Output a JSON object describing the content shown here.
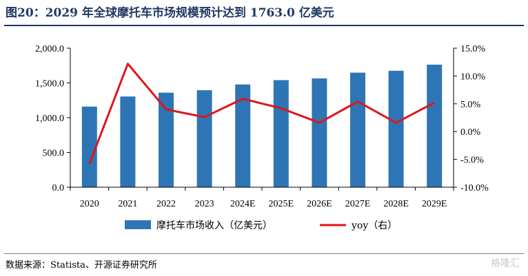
{
  "title": "图20：2029 年全球摩托车市场规模预计达到 1763.0 亿美元",
  "source": "数据来源：Statista、开源证券研究所",
  "watermark": "格隆汇",
  "colors": {
    "bar": "#2e75b6",
    "line": "#e0151a",
    "title": "#1f3864"
  },
  "chart_data": {
    "type": "bar",
    "categories": [
      "2020",
      "2021",
      "2022",
      "2023",
      "2024E",
      "2025E",
      "2026E",
      "2027E",
      "2028E",
      "2029E"
    ],
    "series": [
      {
        "name": "摩托车市场收入（亿美元）",
        "type": "bar",
        "axis": "left",
        "values": [
          1160,
          1305,
          1360,
          1395,
          1478,
          1540,
          1565,
          1648,
          1675,
          1763
        ]
      },
      {
        "name": "yoy（右）",
        "type": "line",
        "axis": "right",
        "values": [
          -5.8,
          12.2,
          4.0,
          2.6,
          5.9,
          4.2,
          1.6,
          5.4,
          1.6,
          5.2
        ]
      }
    ],
    "y_left": {
      "min": 0,
      "max": 2000,
      "ticks": [
        "0.0",
        "500.0",
        "1,000.0",
        "1,500.0",
        "2,000.0"
      ]
    },
    "y_right": {
      "min": -10,
      "max": 15,
      "ticks": [
        "-10.0%",
        "-5.0%",
        "0.0%",
        "5.0%",
        "10.0%",
        "15.0%"
      ]
    },
    "grid": false,
    "legend": "bottom"
  }
}
